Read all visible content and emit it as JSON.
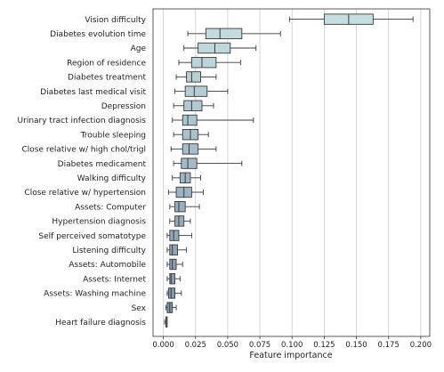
{
  "chart_data": {
    "type": "boxplot",
    "orientation": "horizontal",
    "xlabel": "Feature importance",
    "xlim": [
      -0.008,
      0.207
    ],
    "xticks": [
      0.0,
      0.025,
      0.05,
      0.075,
      0.1,
      0.125,
      0.15,
      0.175,
      0.2
    ],
    "xtick_labels": [
      "0.000",
      "0.025",
      "0.050",
      "0.075",
      "0.100",
      "0.125",
      "0.150",
      "0.175",
      "0.200"
    ],
    "grid": "vertical",
    "colors": {
      "box_light": "#c5dfe1",
      "box_dark": "#7b93ab",
      "edge": "#3a3a3a",
      "grid": "#cccccc"
    },
    "categories": [
      "Vision difficulty",
      "Diabetes evolution time",
      "Age",
      "Region of residence",
      "Diabetes treatment",
      "Diabetes last medical visit",
      "Depression",
      "Urinary tract infection diagnosis",
      "Trouble sleeping",
      "Close relative w/ high chol/trigl",
      "Diabetes medicament",
      "Walking difficulty",
      "Close relative w/ hypertension",
      "Assets: Computer",
      "Hypertension diagnosis",
      "Self perceived somatotype",
      "Listening difficulty",
      "Assets: Automobile",
      "Assets: Internet",
      "Assets: Washing machine",
      "Sex",
      "Heart failure diagnosis"
    ],
    "boxes": [
      {
        "whislo": 0.098,
        "q1": 0.125,
        "med": 0.144,
        "q3": 0.163,
        "whishi": 0.194
      },
      {
        "whislo": 0.019,
        "q1": 0.033,
        "med": 0.044,
        "q3": 0.061,
        "whishi": 0.091
      },
      {
        "whislo": 0.016,
        "q1": 0.027,
        "med": 0.04,
        "q3": 0.052,
        "whishi": 0.072
      },
      {
        "whislo": 0.012,
        "q1": 0.022,
        "med": 0.03,
        "q3": 0.041,
        "whishi": 0.06
      },
      {
        "whislo": 0.01,
        "q1": 0.018,
        "med": 0.022,
        "q3": 0.029,
        "whishi": 0.041
      },
      {
        "whislo": 0.009,
        "q1": 0.017,
        "med": 0.024,
        "q3": 0.034,
        "whishi": 0.05
      },
      {
        "whislo": 0.008,
        "q1": 0.016,
        "med": 0.022,
        "q3": 0.03,
        "whishi": 0.039
      },
      {
        "whislo": 0.007,
        "q1": 0.015,
        "med": 0.019,
        "q3": 0.026,
        "whishi": 0.07
      },
      {
        "whislo": 0.008,
        "q1": 0.015,
        "med": 0.021,
        "q3": 0.027,
        "whishi": 0.035
      },
      {
        "whislo": 0.006,
        "q1": 0.015,
        "med": 0.02,
        "q3": 0.027,
        "whishi": 0.041
      },
      {
        "whislo": 0.008,
        "q1": 0.014,
        "med": 0.019,
        "q3": 0.026,
        "whishi": 0.061
      },
      {
        "whislo": 0.007,
        "q1": 0.013,
        "med": 0.017,
        "q3": 0.021,
        "whishi": 0.029
      },
      {
        "whislo": 0.004,
        "q1": 0.01,
        "med": 0.016,
        "q3": 0.022,
        "whishi": 0.031
      },
      {
        "whislo": 0.005,
        "q1": 0.009,
        "med": 0.012,
        "q3": 0.017,
        "whishi": 0.028
      },
      {
        "whislo": 0.005,
        "q1": 0.009,
        "med": 0.012,
        "q3": 0.016,
        "whishi": 0.021
      },
      {
        "whislo": 0.003,
        "q1": 0.005,
        "med": 0.008,
        "q3": 0.012,
        "whishi": 0.022
      },
      {
        "whislo": 0.003,
        "q1": 0.005,
        "med": 0.007,
        "q3": 0.011,
        "whishi": 0.018
      },
      {
        "whislo": 0.003,
        "q1": 0.005,
        "med": 0.007,
        "q3": 0.01,
        "whishi": 0.015
      },
      {
        "whislo": 0.003,
        "q1": 0.005,
        "med": 0.006,
        "q3": 0.009,
        "whishi": 0.013
      },
      {
        "whislo": 0.003,
        "q1": 0.004,
        "med": 0.006,
        "q3": 0.009,
        "whishi": 0.014
      },
      {
        "whislo": 0.002,
        "q1": 0.003,
        "med": 0.005,
        "q3": 0.007,
        "whishi": 0.01
      },
      {
        "whislo": 0.001,
        "q1": 0.002,
        "med": 0.002,
        "q3": 0.003,
        "whishi": 0.003
      }
    ]
  }
}
